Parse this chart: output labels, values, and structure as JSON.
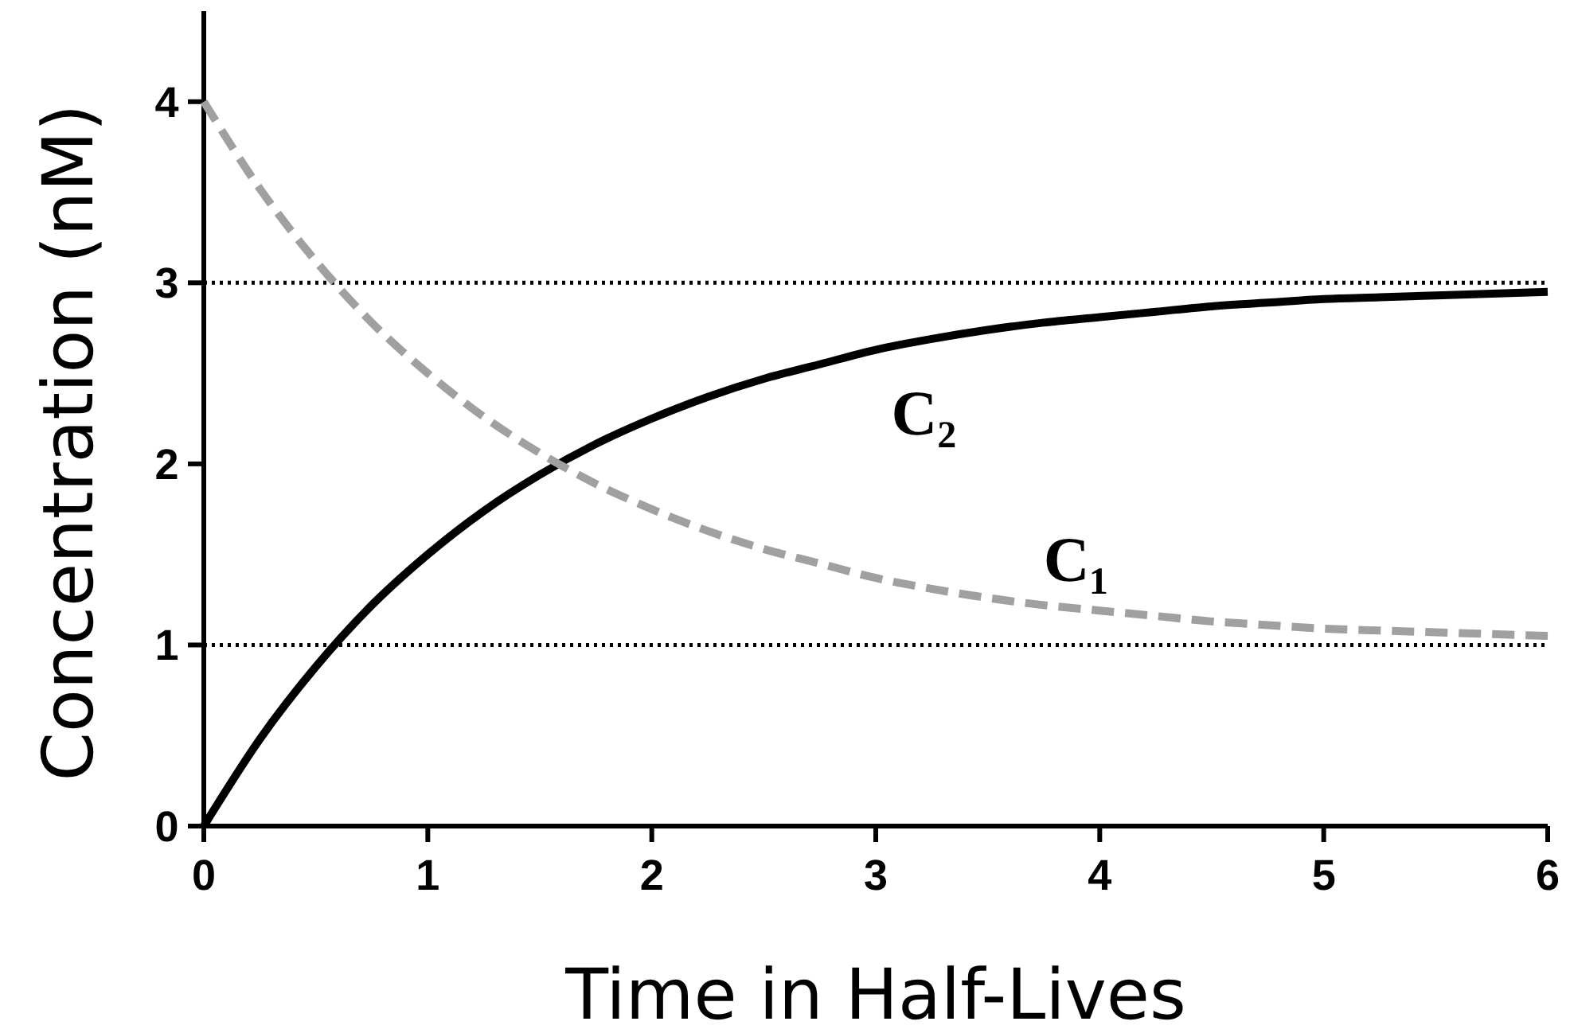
{
  "chart_data": {
    "type": "line",
    "xlabel": "Time in Half-Lives",
    "ylabel": "Concentration (nM)",
    "x": [
      0,
      0.25,
      0.5,
      0.75,
      1,
      1.25,
      1.5,
      1.75,
      2,
      2.25,
      2.5,
      2.75,
      3,
      3.25,
      3.5,
      3.75,
      4,
      4.25,
      4.5,
      4.75,
      5,
      5.25,
      5.5,
      5.75,
      6
    ],
    "series": [
      {
        "name": "C₂",
        "color": "#000000",
        "line_style": "solid",
        "values": [
          0,
          0.48,
          0.88,
          1.22,
          1.5,
          1.74,
          1.94,
          2.11,
          2.25,
          2.37,
          2.47,
          2.55,
          2.63,
          2.69,
          2.74,
          2.78,
          2.81,
          2.84,
          2.87,
          2.89,
          2.91,
          2.92,
          2.93,
          2.94,
          2.95
        ]
      },
      {
        "name": "C₁",
        "color": "#a0a0a0",
        "line_style": "dashed",
        "values": [
          4,
          3.52,
          3.12,
          2.78,
          2.5,
          2.26,
          2.06,
          1.89,
          1.75,
          1.63,
          1.53,
          1.45,
          1.37,
          1.31,
          1.26,
          1.22,
          1.19,
          1.16,
          1.13,
          1.11,
          1.09,
          1.08,
          1.07,
          1.06,
          1.05
        ]
      }
    ],
    "xlim": [
      0,
      6
    ],
    "xticks": [
      0,
      1,
      2,
      3,
      4,
      5,
      6
    ],
    "ylim": [
      0,
      4.5
    ],
    "yticks": [
      0,
      1,
      2,
      3,
      4
    ],
    "ref_lines": [
      {
        "axis": "y",
        "value": 3,
        "color": "#000000",
        "line_style": "dotted"
      },
      {
        "axis": "y",
        "value": 1,
        "color": "#000000",
        "line_style": "dotted"
      }
    ],
    "grid": false,
    "marker": "none"
  }
}
